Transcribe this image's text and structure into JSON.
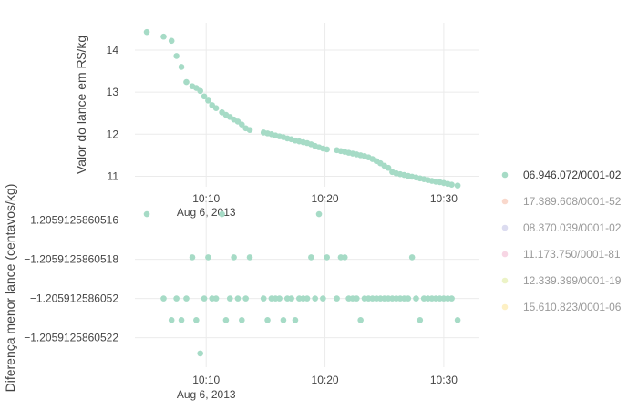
{
  "chart_data": [
    {
      "type": "scatter",
      "ylabel": "Valor do lance em R$/kg",
      "xlabel": "",
      "date_label": "Aug 6, 2013",
      "x_ticks": [
        "10:10",
        "10:20",
        "10:30"
      ],
      "y_ticks": [
        "11",
        "12",
        "13",
        "14"
      ],
      "xlim": [
        "10:04:00",
        "10:33:00"
      ],
      "ylim": [
        10.75,
        14.65
      ],
      "grid": true,
      "series": [
        {
          "name": "06.946.072/0001-02",
          "color": "#a6dbc6",
          "x": [
            "10:05:00",
            "10:06:25",
            "10:07:05",
            "10:07:30",
            "10:07:55",
            "10:08:20",
            "10:08:50",
            "10:09:10",
            "10:09:30",
            "10:09:50",
            "10:10:10",
            "10:10:30",
            "10:10:50",
            "10:11:20",
            "10:11:40",
            "10:12:00",
            "10:12:20",
            "10:12:40",
            "10:13:00",
            "10:13:20",
            "10:13:40",
            "10:14:50",
            "10:15:10",
            "10:15:30",
            "10:15:50",
            "10:16:10",
            "10:16:30",
            "10:16:50",
            "10:17:10",
            "10:17:30",
            "10:17:50",
            "10:18:10",
            "10:18:30",
            "10:18:50",
            "10:19:10",
            "10:19:30",
            "10:19:50",
            "10:20:10",
            "10:21:00",
            "10:21:20",
            "10:21:40",
            "10:22:00",
            "10:22:20",
            "10:22:40",
            "10:23:00",
            "10:23:20",
            "10:23:40",
            "10:24:00",
            "10:24:20",
            "10:24:40",
            "10:25:00",
            "10:25:20",
            "10:25:40",
            "10:26:00",
            "10:26:20",
            "10:26:40",
            "10:27:00",
            "10:27:20",
            "10:27:40",
            "10:28:00",
            "10:28:20",
            "10:28:40",
            "10:29:00",
            "10:29:20",
            "10:29:40",
            "10:30:00",
            "10:30:20",
            "10:30:40",
            "10:31:10"
          ],
          "values": [
            14.43,
            14.32,
            14.22,
            13.86,
            13.6,
            13.24,
            13.14,
            13.1,
            13.03,
            12.9,
            12.8,
            12.69,
            12.62,
            12.52,
            12.46,
            12.41,
            12.35,
            12.3,
            12.23,
            12.14,
            12.1,
            12.04,
            12.02,
            12.0,
            11.97,
            11.95,
            11.93,
            11.9,
            11.88,
            11.85,
            11.83,
            11.81,
            11.79,
            11.76,
            11.72,
            11.69,
            11.66,
            11.64,
            11.62,
            11.6,
            11.58,
            11.56,
            11.54,
            11.52,
            11.5,
            11.48,
            11.45,
            11.41,
            11.36,
            11.31,
            11.25,
            11.2,
            11.1,
            11.07,
            11.05,
            11.03,
            11.01,
            10.99,
            10.97,
            10.95,
            10.93,
            10.91,
            10.89,
            10.87,
            10.86,
            10.84,
            10.82,
            10.8,
            10.78
          ]
        }
      ]
    },
    {
      "type": "scatter",
      "ylabel": "Diferença menor lance (centavos/kg)",
      "xlabel": "",
      "date_label": "Aug 6, 2013",
      "x_ticks": [
        "10:10",
        "10:20",
        "10:30"
      ],
      "y_ticks": [
        "−1.2059125860516",
        "−1.2059125860518",
        "−1.205912586052",
        "−1.2059125860522"
      ],
      "xlim": [
        "10:04:00",
        "10:33:00"
      ],
      "ylim": [
        -1.20591258605235,
        -1.2059125860515
      ],
      "grid": true,
      "series": [
        {
          "name": "06.946.072/0001-02",
          "color": "#a6dbc6",
          "x": [
            "10:05:00",
            "10:06:25",
            "10:07:05",
            "10:07:30",
            "10:07:55",
            "10:08:20",
            "10:08:50",
            "10:09:10",
            "10:09:30",
            "10:09:50",
            "10:10:10",
            "10:10:30",
            "10:10:50",
            "10:11:20",
            "10:11:40",
            "10:12:00",
            "10:12:20",
            "10:12:40",
            "10:13:00",
            "10:13:20",
            "10:13:40",
            "10:14:50",
            "10:15:10",
            "10:15:30",
            "10:15:50",
            "10:16:10",
            "10:16:30",
            "10:16:50",
            "10:17:10",
            "10:17:30",
            "10:17:50",
            "10:18:10",
            "10:18:30",
            "10:18:50",
            "10:19:10",
            "10:19:30",
            "10:19:50",
            "10:20:10",
            "10:21:00",
            "10:21:20",
            "10:21:40",
            "10:22:00",
            "10:22:20",
            "10:22:40",
            "10:23:00",
            "10:23:20",
            "10:23:40",
            "10:24:00",
            "10:24:20",
            "10:24:40",
            "10:25:00",
            "10:25:20",
            "10:25:40",
            "10:26:00",
            "10:26:20",
            "10:26:40",
            "10:27:00",
            "10:27:20",
            "10:27:40",
            "10:28:00",
            "10:28:20",
            "10:28:40",
            "10:29:00",
            "10:29:20",
            "10:29:40",
            "10:30:00",
            "10:30:20",
            "10:30:40",
            "10:31:10"
          ],
          "values": [
            -1.20591258605157,
            -1.205912586052,
            -1.20591258605211,
            -1.205912586052,
            -1.20591258605211,
            -1.205912586052,
            -1.20591258605179,
            -1.20591258605211,
            -1.20591258605228,
            -1.205912586052,
            -1.20591258605179,
            -1.205912586052,
            -1.205912586052,
            -1.20591258605157,
            -1.20591258605211,
            -1.205912586052,
            -1.20591258605179,
            -1.205912586052,
            -1.20591258605211,
            -1.205912586052,
            -1.20591258605179,
            -1.205912586052,
            -1.20591258605211,
            -1.205912586052,
            -1.205912586052,
            -1.205912586052,
            -1.20591258605211,
            -1.205912586052,
            -1.205912586052,
            -1.20591258605211,
            -1.205912586052,
            -1.205912586052,
            -1.205912586052,
            -1.20591258605179,
            -1.205912586052,
            -1.20591258605157,
            -1.205912586052,
            -1.20591258605179,
            -1.205912586052,
            -1.20591258605179,
            -1.20591258605179,
            -1.205912586052,
            -1.205912586052,
            -1.205912586052,
            -1.20591258605211,
            -1.205912586052,
            -1.205912586052,
            -1.205912586052,
            -1.205912586052,
            -1.205912586052,
            -1.205912586052,
            -1.205912586052,
            -1.205912586052,
            -1.205912586052,
            -1.205912586052,
            -1.205912586052,
            -1.205912586052,
            -1.20591258605179,
            -1.205912586052,
            -1.20591258605211,
            -1.205912586052,
            -1.205912586052,
            -1.205912586052,
            -1.205912586052,
            -1.205912586052,
            -1.205912586052,
            -1.205912586052,
            -1.205912586052,
            -1.20591258605211
          ]
        }
      ]
    }
  ],
  "legend": {
    "position": "right",
    "items": [
      {
        "label": "06.946.072/0001-02",
        "color": "#a6dbc6",
        "active": true
      },
      {
        "label": "17.389.608/0001-52",
        "color": "#f9d8cc",
        "active": false
      },
      {
        "label": "08.370.039/0001-02",
        "color": "#dcdcf0",
        "active": false
      },
      {
        "label": "11.173.750/0001-81",
        "color": "#f7d6e4",
        "active": false
      },
      {
        "label": "12.339.399/0001-19",
        "color": "#ecf3c6",
        "active": false
      },
      {
        "label": "15.610.823/0001-06",
        "color": "#fdf0c4",
        "active": false
      }
    ]
  }
}
